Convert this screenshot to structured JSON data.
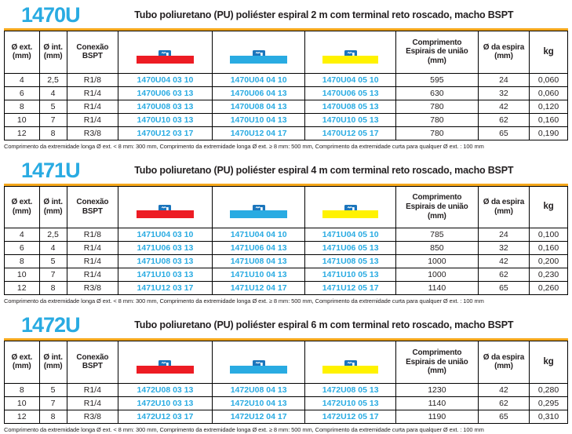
{
  "page": {
    "footnote": "Comprimento da extremidade longa Ø ext. < 8 mm: 300 mm, Comprimento da extremidade longa Ø ext. ≥ 8 mm: 500 mm, Comprimento da extremidade curta para qualquer Ø ext. : 100 mm"
  },
  "colors": {
    "accent_cyan": "#29abe2",
    "rule_orange": "#f5a71b",
    "icon_blue": "#1b75bc"
  },
  "table": {
    "headers": {
      "ext_diameter": "Ø ext.\n(mm)",
      "int_diameter": "Ø int.\n(mm)",
      "connection": "Conexão\nBSPT",
      "union_spiral_length": "Comprimento\nEspirais de união\n(mm)",
      "spiral_diameter": "Ø da espira\n(mm)",
      "weight": "kg"
    },
    "code_columns": [
      {
        "icon": "spiral-tube-icon",
        "bar_color": "#ed1c24",
        "bar_name": "red"
      },
      {
        "icon": "spiral-tube-icon",
        "bar_color": "#29abe2",
        "bar_name": "blue"
      },
      {
        "icon": "spiral-tube-icon",
        "bar_color": "#fff200",
        "bar_name": "yellow"
      }
    ]
  },
  "sections": [
    {
      "code": "1470U",
      "title": "Tubo poliuretano (PU) poliéster espiral 2 m com terminal reto roscado, macho BSPT",
      "rows": [
        [
          "4",
          "2,5",
          "R1/8",
          "1470U04 03 10",
          "1470U04 04 10",
          "1470U04 05 10",
          "595",
          "24",
          "0,060"
        ],
        [
          "6",
          "4",
          "R1/4",
          "1470U06 03 13",
          "1470U06 04 13",
          "1470U06 05 13",
          "630",
          "32",
          "0,060"
        ],
        [
          "8",
          "5",
          "R1/4",
          "1470U08 03 13",
          "1470U08 04 13",
          "1470U08 05 13",
          "780",
          "42",
          "0,120"
        ],
        [
          "10",
          "7",
          "R1/4",
          "1470U10 03 13",
          "1470U10 04 13",
          "1470U10 05 13",
          "780",
          "62",
          "0,160"
        ],
        [
          "12",
          "8",
          "R3/8",
          "1470U12 03 17",
          "1470U12 04 17",
          "1470U12 05 17",
          "780",
          "65",
          "0,190"
        ]
      ]
    },
    {
      "code": "1471U",
      "title": "Tubo poliuretano (PU) poliéster espiral 4 m com terminal reto roscado, macho BSPT",
      "rows": [
        [
          "4",
          "2,5",
          "R1/8",
          "1471U04 03 10",
          "1471U04 04 10",
          "1471U04 05 10",
          "785",
          "24",
          "0,100"
        ],
        [
          "6",
          "4",
          "R1/4",
          "1471U06 03 13",
          "1471U06 04 13",
          "1471U06 05 13",
          "850",
          "32",
          "0,160"
        ],
        [
          "8",
          "5",
          "R1/4",
          "1471U08 03 13",
          "1471U08 04 13",
          "1471U08 05 13",
          "1000",
          "42",
          "0,200"
        ],
        [
          "10",
          "7",
          "R1/4",
          "1471U10 03 13",
          "1471U10 04 13",
          "1471U10 05 13",
          "1000",
          "62",
          "0,230"
        ],
        [
          "12",
          "8",
          "R3/8",
          "1471U12 03 17",
          "1471U12 04 17",
          "1471U12 05 17",
          "1140",
          "65",
          "0,260"
        ]
      ]
    },
    {
      "code": "1472U",
      "title": "Tubo poliuretano (PU) poliéster espiral 6 m com terminal reto roscado, macho BSPT",
      "rows": [
        [
          "8",
          "5",
          "R1/4",
          "1472U08 03 13",
          "1472U08 04 13",
          "1472U08 05 13",
          "1230",
          "42",
          "0,280"
        ],
        [
          "10",
          "7",
          "R1/4",
          "1472U10 03 13",
          "1472U10 04 13",
          "1472U10 05 13",
          "1140",
          "62",
          "0,295"
        ],
        [
          "12",
          "8",
          "R3/8",
          "1472U12 03 17",
          "1472U12 04 17",
          "1472U12 05 17",
          "1190",
          "65",
          "0,310"
        ]
      ]
    }
  ]
}
